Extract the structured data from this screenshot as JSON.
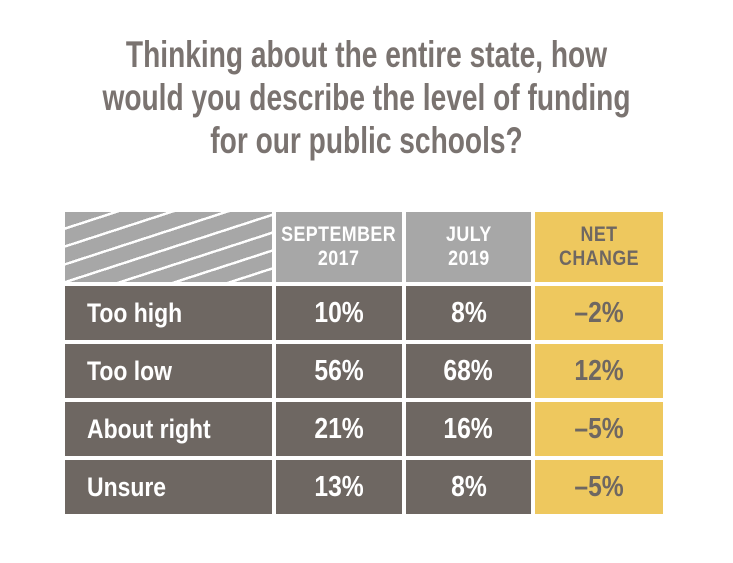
{
  "title": {
    "full": "Thinking about the entire state, how would you describe the level of funding for our public schools?",
    "lines": [
      "Thinking about the entire state, how",
      "would you describe the level of funding",
      "for our public schools?"
    ]
  },
  "table": {
    "columns": [
      {
        "label": "",
        "lines": [
          "",
          ""
        ]
      },
      {
        "label": "SEPTEMBER 2017",
        "lines": [
          "SEPTEMBER",
          "2017"
        ]
      },
      {
        "label": "JULY 2019",
        "lines": [
          "JULY",
          "2019"
        ]
      },
      {
        "label": "NET CHANGE",
        "lines": [
          "NET",
          "CHANGE"
        ]
      }
    ],
    "rows": [
      {
        "label": "Too high",
        "values": [
          "10%",
          "8%",
          "–2%"
        ]
      },
      {
        "label": "Too low",
        "values": [
          "56%",
          "68%",
          "12%"
        ]
      },
      {
        "label": "About right",
        "values": [
          "21%",
          "16%",
          "–5%"
        ]
      },
      {
        "label": "Unsure",
        "values": [
          "13%",
          "8%",
          "–5%"
        ]
      }
    ]
  },
  "colors": {
    "header_gray": "#a7a7a7",
    "row_dark": "#6e6762",
    "accent_yellow": "#eec85e",
    "title_text": "#7a7370",
    "white": "#ffffff"
  },
  "chart_data": {
    "type": "table",
    "title": "Thinking about the entire state, how would you describe the level of funding for our public schools?",
    "categories": [
      "Too high",
      "Too low",
      "About right",
      "Unsure"
    ],
    "series": [
      {
        "name": "September 2017",
        "values": [
          10,
          56,
          21,
          13
        ]
      },
      {
        "name": "July 2019",
        "values": [
          8,
          68,
          16,
          8
        ]
      },
      {
        "name": "Net change",
        "values": [
          -2,
          12,
          -5,
          -5
        ]
      }
    ],
    "unit": "percent",
    "legend_position": "none",
    "grid": false
  }
}
